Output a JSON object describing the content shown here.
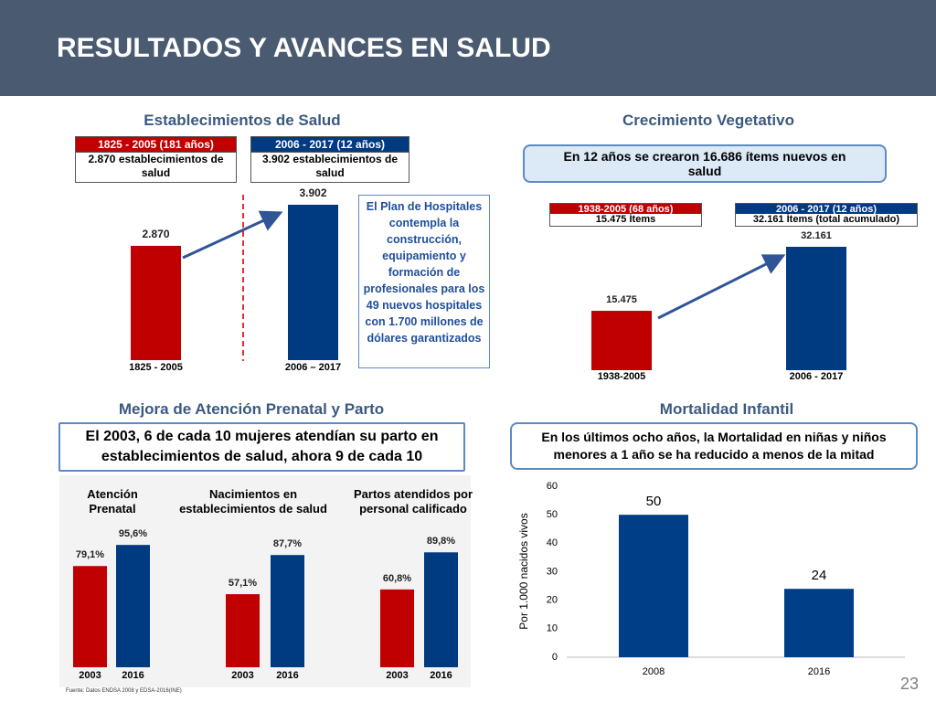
{
  "header": {
    "title": "RESULTADOS Y AVANCES EN SALUD"
  },
  "chart_data": [
    {
      "type": "bar",
      "title": "Establecimientos de Salud",
      "boxes": [
        {
          "heading": "1825 - 2005  (181 años)",
          "text": "2.870 establecimientos de salud"
        },
        {
          "heading": "2006 - 2017 (12 años)",
          "text": "3.902 establecimientos de salud"
        }
      ],
      "categories": [
        "1825 - 2005",
        "2006 – 2017"
      ],
      "values": [
        2870,
        3902
      ],
      "value_labels": [
        "2.870",
        "3.902"
      ],
      "colors": [
        "#c00000",
        "#003a80"
      ],
      "note": "El Plan de Hospitales contempla la construcción, equipamiento y formación de profesionales para los 49 nuevos hospitales con 1.700 millones de dólares garantizados"
    },
    {
      "type": "bar",
      "title": "Crecimiento Vegetativo",
      "callout": "En 12 años se crearon 16.686 ítems nuevos en salud",
      "boxes": [
        {
          "heading": "1938-2005 (68 años)",
          "text": "15.475 Ítems"
        },
        {
          "heading": "2006 - 2017 (12 años)",
          "text": "32.161 Ítems (total acumulado)"
        }
      ],
      "categories": [
        "1938-2005",
        "2006 - 2017"
      ],
      "values": [
        15475,
        32161
      ],
      "value_labels": [
        "15.475",
        "32.161"
      ],
      "colors": [
        "#c00000",
        "#003a80"
      ]
    },
    {
      "type": "bar",
      "title": "Mejora de Atención Prenatal y  Parto",
      "callout": "El 2003, 6 de cada 10 mujeres atendían su parto en establecimientos de salud, ahora 9 de cada 10",
      "colors": [
        "#c00000",
        "#003a80"
      ],
      "groups": [
        {
          "title": "Atención Prenatal",
          "categories": [
            "2003",
            "2016"
          ],
          "values": [
            79.1,
            95.6
          ],
          "value_labels": [
            "79,1%",
            "95,6%"
          ]
        },
        {
          "title": "Nacimientos en establecimientos de salud",
          "categories": [
            "2003",
            "2016"
          ],
          "values": [
            57.1,
            87.7
          ],
          "value_labels": [
            "57,1%",
            "87,7%"
          ]
        },
        {
          "title": "Partos atendidos por personal calificado",
          "categories": [
            "2003",
            "2016"
          ],
          "values": [
            60.8,
            89.8
          ],
          "value_labels": [
            "60,8%",
            "89,8%"
          ]
        }
      ],
      "source": "Fuente: Datos ENDSA 2008 y EDSA-2016(INE)"
    },
    {
      "type": "bar",
      "title": "Mortalidad Infantil",
      "callout": "En los últimos ocho años, la Mortalidad en niñas y niños menores a 1 año se ha reducido a menos de la mitad",
      "categories": [
        "2008",
        "2016"
      ],
      "values": [
        50,
        24
      ],
      "color": "#003f87",
      "ylabel": "Por 1.000 nacidos vivos",
      "ylim": [
        0,
        60
      ],
      "yticks": [
        0,
        10,
        20,
        30,
        40,
        50,
        60
      ]
    }
  ],
  "page_number": "23"
}
